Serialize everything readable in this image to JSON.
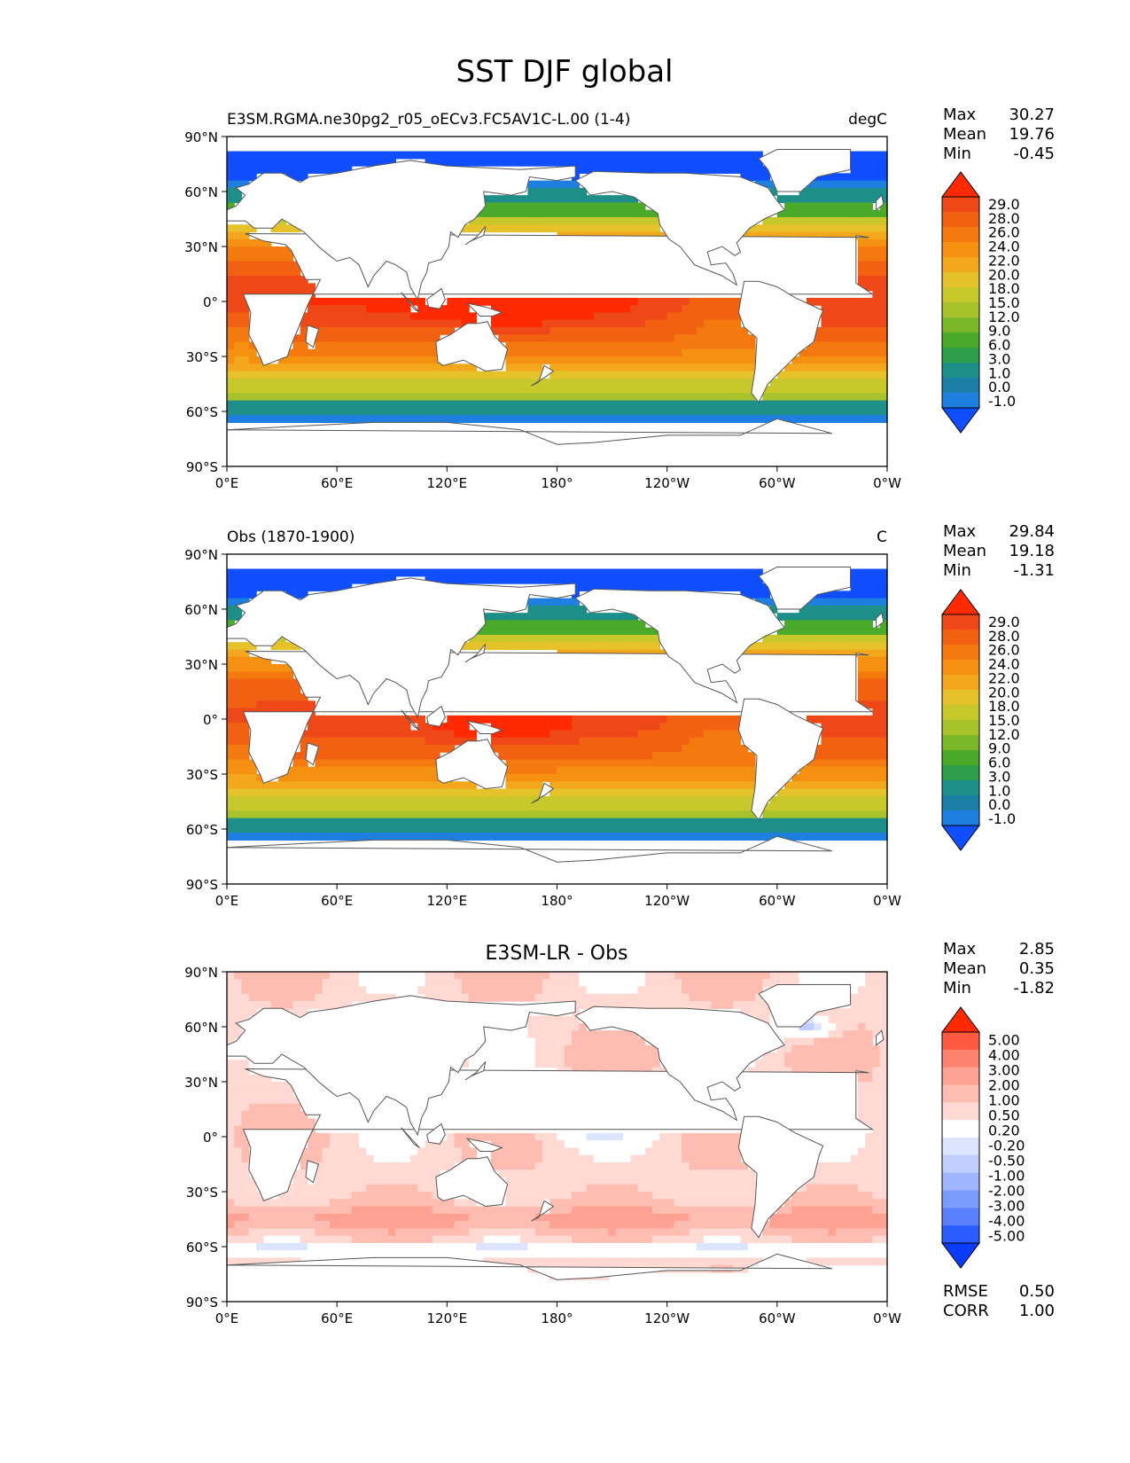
{
  "figure": {
    "title": "SST DJF global"
  },
  "colors": {
    "land": "#ffffff",
    "coast": "#555555",
    "frame": "#000000",
    "sst_levels": [
      "#0f4fff",
      "#1f7fe0",
      "#1c7fa6",
      "#1e8f88",
      "#2e9e4a",
      "#4caa2a",
      "#7ab828",
      "#a8c22c",
      "#c8c82c",
      "#e6c22a",
      "#f2a81a",
      "#f59010",
      "#f47a10",
      "#f26012",
      "#ee4818",
      "#ff2a00"
    ],
    "diff_levels": [
      "#0a3cff",
      "#2a5dff",
      "#5a80ff",
      "#7d9cff",
      "#9fb6ff",
      "#bfcdff",
      "#dde4ff",
      "#ffffff",
      "#ffd9d2",
      "#ffbdb2",
      "#ffa294",
      "#ff8470",
      "#ff5a40",
      "#ff2a00"
    ]
  },
  "axes": {
    "lat_ticks": [
      "90°N",
      "60°N",
      "30°N",
      "0°",
      "30°S",
      "60°S",
      "90°S"
    ],
    "lon_ticks": [
      "0°E",
      "60°E",
      "120°E",
      "180°",
      "120°W",
      "60°W",
      "0°W"
    ]
  },
  "chart_data": [
    {
      "type": "heatmap",
      "name": "test",
      "title_left": "E3SM.RGMA.ne30pg2_r05_oECv3.FC5AV1C-L.00 (1-4)",
      "title_center": "",
      "units": "degC",
      "stats": {
        "Max": "30.27",
        "Mean": "19.76",
        "Min": "-0.45"
      },
      "colorbar_levels": [
        "29.0",
        "28.0",
        "26.0",
        "24.0",
        "22.0",
        "20.0",
        "18.0",
        "15.0",
        "12.0",
        "9.0",
        "6.0",
        "3.0",
        "1.0",
        "0.0",
        "-1.0"
      ],
      "lat_range": [
        -90,
        90
      ],
      "lon_range": [
        0,
        360
      ]
    },
    {
      "type": "heatmap",
      "name": "reference",
      "title_left": "Obs (1870-1900)",
      "title_center": "",
      "units": "C",
      "stats": {
        "Max": "29.84",
        "Mean": "19.18",
        "Min": "-1.31"
      },
      "colorbar_levels": [
        "29.0",
        "28.0",
        "26.0",
        "24.0",
        "22.0",
        "20.0",
        "18.0",
        "15.0",
        "12.0",
        "9.0",
        "6.0",
        "3.0",
        "1.0",
        "0.0",
        "-1.0"
      ],
      "lat_range": [
        -90,
        90
      ],
      "lon_range": [
        0,
        360
      ]
    },
    {
      "type": "heatmap",
      "name": "difference",
      "title_left": "",
      "title_center": "E3SM-LR - Obs",
      "units": "",
      "stats": {
        "Max": "2.85",
        "Mean": "0.35",
        "Min": "-1.82"
      },
      "colorbar_levels": [
        "5.00",
        "4.00",
        "3.00",
        "2.00",
        "1.00",
        "0.50",
        "0.20",
        "-0.20",
        "-0.50",
        "-1.00",
        "-2.00",
        "-3.00",
        "-4.00",
        "-5.00"
      ],
      "metrics": {
        "RMSE": "0.50",
        "CORR": "1.00"
      },
      "lat_range": [
        -90,
        90
      ],
      "lon_range": [
        0,
        360
      ]
    }
  ]
}
